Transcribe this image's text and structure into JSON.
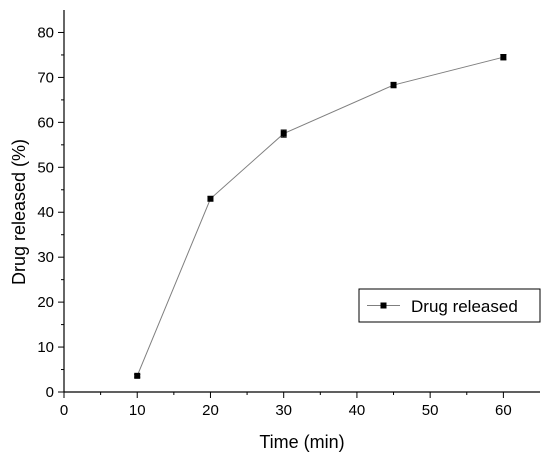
{
  "chart_data": {
    "type": "line",
    "title": "",
    "xlabel": "Time (min)",
    "ylabel": "Drug released (%)",
    "xlim": [
      0,
      65
    ],
    "ylim": [
      0,
      85
    ],
    "xticks": [
      0,
      10,
      20,
      30,
      40,
      50,
      60
    ],
    "yticks": [
      0,
      10,
      20,
      30,
      40,
      50,
      60,
      70,
      80
    ],
    "grid": false,
    "legend_position": "right",
    "series": [
      {
        "name": "Drug released",
        "color": "#000000",
        "line_color": "#7f7f7f",
        "marker": "square",
        "x": [
          10,
          20,
          30,
          45,
          60
        ],
        "y": [
          3.6,
          43.0,
          57.5,
          68.3,
          74.5
        ],
        "error": [
          0.3,
          0.5,
          0.8,
          0.6,
          0.6
        ]
      }
    ]
  }
}
